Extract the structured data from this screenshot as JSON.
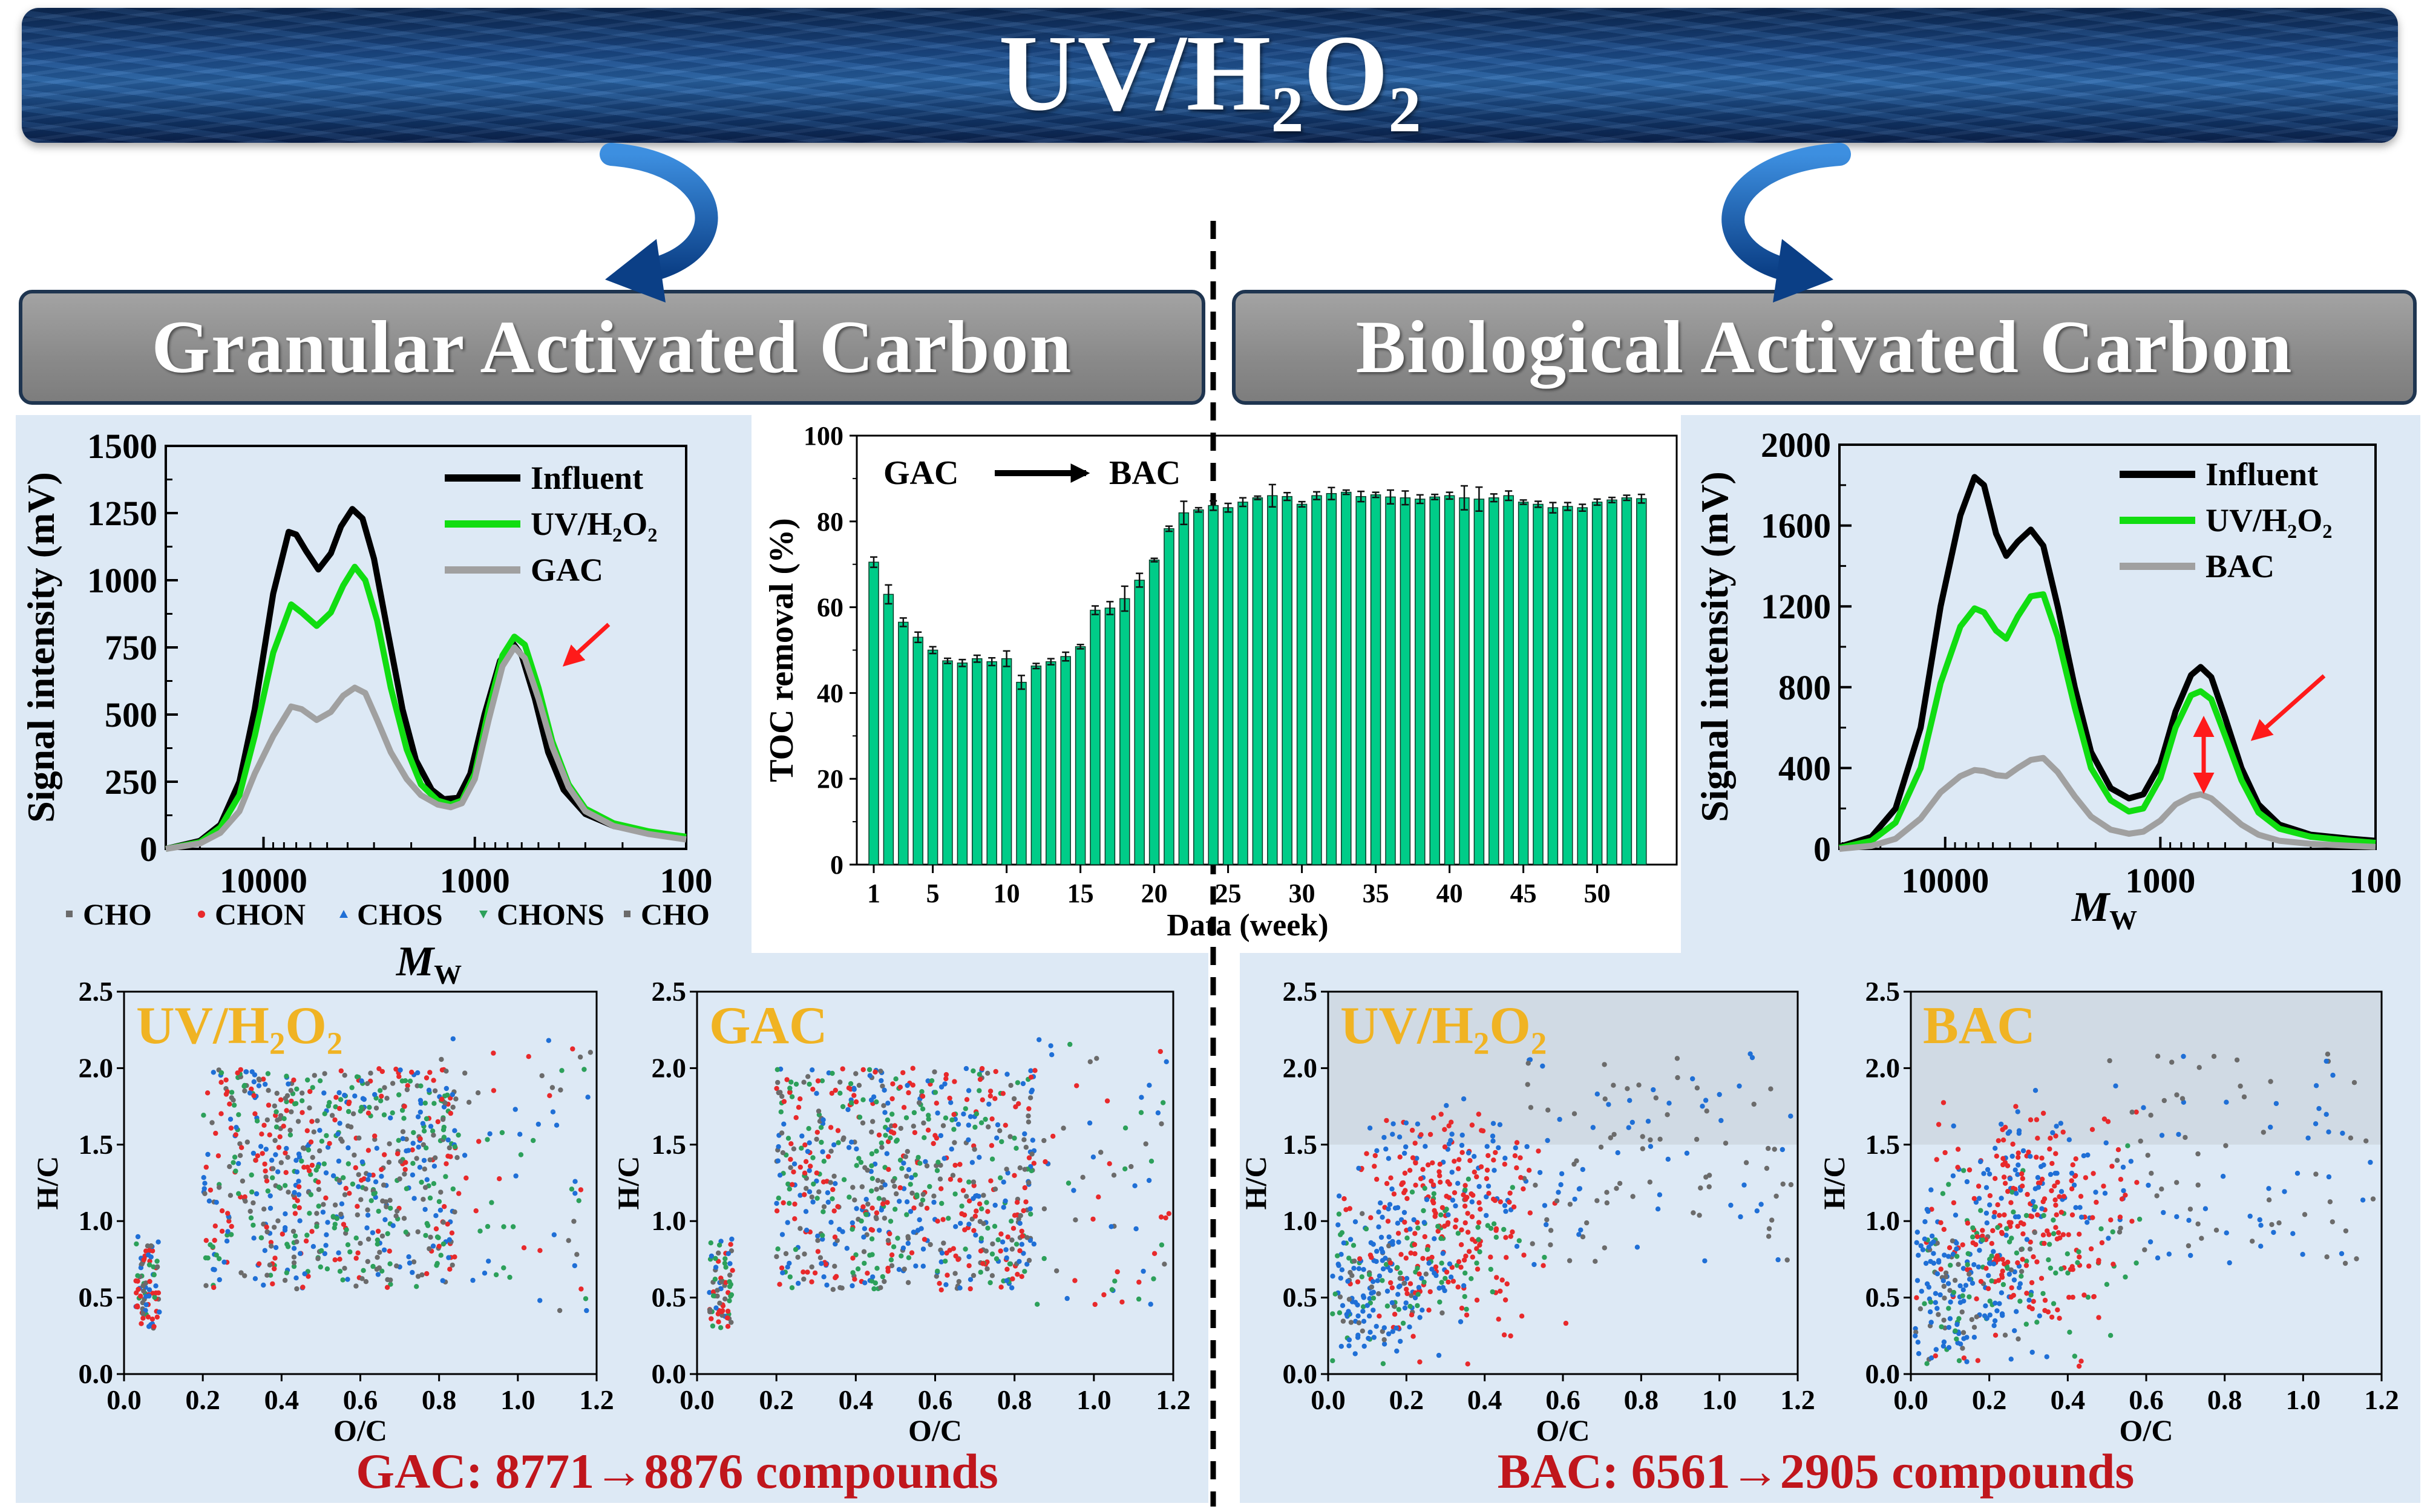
{
  "banner": {
    "title": "UV/H₂O₂"
  },
  "headers": {
    "left": "Granular Activated Carbon",
    "right": "Biological Activated Carbon"
  },
  "colors": {
    "cho": "#6b6b6b",
    "chon": "#e8292b",
    "chos": "#1f6fd6",
    "chons": "#2ca05a",
    "influent": "#000000",
    "uv": "#11dd11",
    "gac": "#a0a0a0",
    "bar": "#00cc88",
    "title_accent": "#f0b323",
    "result_text": "#c0161c"
  },
  "results": {
    "gac": "GAC: 8771→8876 compounds",
    "bac": "BAC: 6561→2905 compounds"
  },
  "scatter_legend": [
    {
      "label": "CHO",
      "marker": "square",
      "color": "#6b6b6b"
    },
    {
      "label": "CHON",
      "marker": "circle",
      "color": "#e8292b"
    },
    {
      "label": "CHOS",
      "marker": "triangle-up",
      "color": "#1f6fd6"
    },
    {
      "label": "CHONS",
      "marker": "triangle-down",
      "color": "#2ca05a"
    },
    {
      "label": "CHO",
      "marker": "square",
      "color": "#6b6b6b"
    }
  ],
  "chart_data": [
    {
      "id": "sec-gac",
      "type": "line",
      "xlabel": "M_W",
      "ylabel": "Signal intensity (mV)",
      "xscale": "log",
      "xlim": [
        29000,
        100
      ],
      "ylim": [
        0,
        1500
      ],
      "xticks": [
        10000,
        1000,
        100
      ],
      "yticks": [
        0,
        250,
        500,
        750,
        1000,
        1250,
        1500
      ],
      "legend_placement": "top-right",
      "series": [
        {
          "name": "Influent",
          "color": "#000000",
          "points": [
            [
              29000,
              0
            ],
            [
              20000,
              30
            ],
            [
              16000,
              90
            ],
            [
              13000,
              250
            ],
            [
              11000,
              520
            ],
            [
              9000,
              950
            ],
            [
              7600,
              1180
            ],
            [
              7000,
              1170
            ],
            [
              6300,
              1110
            ],
            [
              5500,
              1040
            ],
            [
              4800,
              1100
            ],
            [
              4300,
              1200
            ],
            [
              3800,
              1265
            ],
            [
              3400,
              1230
            ],
            [
              3000,
              1080
            ],
            [
              2600,
              820
            ],
            [
              2200,
              520
            ],
            [
              1900,
              330
            ],
            [
              1600,
              220
            ],
            [
              1400,
              185
            ],
            [
              1200,
              190
            ],
            [
              1050,
              280
            ],
            [
              900,
              500
            ],
            [
              760,
              700
            ],
            [
              660,
              765
            ],
            [
              600,
              720
            ],
            [
              520,
              560
            ],
            [
              450,
              360
            ],
            [
              380,
              220
            ],
            [
              300,
              130
            ],
            [
              220,
              85
            ],
            [
              150,
              60
            ],
            [
              100,
              45
            ]
          ]
        },
        {
          "name": "UV/H₂O₂",
          "color": "#11dd11",
          "points": [
            [
              29000,
              0
            ],
            [
              20000,
              25
            ],
            [
              16000,
              80
            ],
            [
              13000,
              200
            ],
            [
              11000,
              420
            ],
            [
              9000,
              730
            ],
            [
              7400,
              910
            ],
            [
              6600,
              880
            ],
            [
              5600,
              830
            ],
            [
              4800,
              880
            ],
            [
              4200,
              980
            ],
            [
              3700,
              1050
            ],
            [
              3300,
              1000
            ],
            [
              2900,
              850
            ],
            [
              2500,
              600
            ],
            [
              2100,
              370
            ],
            [
              1800,
              240
            ],
            [
              1500,
              180
            ],
            [
              1300,
              165
            ],
            [
              1150,
              180
            ],
            [
              1000,
              280
            ],
            [
              860,
              520
            ],
            [
              740,
              720
            ],
            [
              650,
              790
            ],
            [
              580,
              760
            ],
            [
              500,
              600
            ],
            [
              430,
              400
            ],
            [
              360,
              240
            ],
            [
              300,
              150
            ],
            [
              220,
              95
            ],
            [
              150,
              65
            ],
            [
              100,
              45
            ]
          ]
        },
        {
          "name": "GAC",
          "color": "#a0a0a0",
          "points": [
            [
              29000,
              0
            ],
            [
              20000,
              20
            ],
            [
              16000,
              60
            ],
            [
              13000,
              140
            ],
            [
              11000,
              280
            ],
            [
              9000,
              420
            ],
            [
              7400,
              530
            ],
            [
              6600,
              520
            ],
            [
              5600,
              480
            ],
            [
              4800,
              510
            ],
            [
              4200,
              570
            ],
            [
              3700,
              600
            ],
            [
              3300,
              580
            ],
            [
              2900,
              480
            ],
            [
              2500,
              360
            ],
            [
              2100,
              260
            ],
            [
              1800,
              200
            ],
            [
              1500,
              165
            ],
            [
              1300,
              155
            ],
            [
              1150,
              170
            ],
            [
              1000,
              260
            ],
            [
              860,
              480
            ],
            [
              740,
              680
            ],
            [
              650,
              750
            ],
            [
              580,
              710
            ],
            [
              500,
              560
            ],
            [
              430,
              380
            ],
            [
              360,
              230
            ],
            [
              300,
              140
            ],
            [
              220,
              85
            ],
            [
              150,
              55
            ],
            [
              100,
              35
            ]
          ]
        }
      ]
    },
    {
      "id": "toc-bar",
      "type": "bar",
      "xlabel": "Data (week)",
      "ylabel": "TOC removal (%)",
      "ylim": [
        0,
        100
      ],
      "yticks": [
        0,
        20,
        40,
        60,
        80,
        100
      ],
      "xticks": [
        1,
        5,
        10,
        15,
        20,
        25,
        30,
        35,
        40,
        45,
        50
      ],
      "annotation": {
        "from": "GAC",
        "to": "BAC"
      },
      "categories": [
        1,
        2,
        3,
        4,
        5,
        6,
        7,
        8,
        9,
        10,
        11,
        12,
        13,
        14,
        15,
        16,
        17,
        18,
        19,
        20,
        21,
        22,
        23,
        24,
        25,
        26,
        27,
        28,
        29,
        30,
        31,
        32,
        33,
        34,
        35,
        36,
        37,
        38,
        39,
        40,
        41,
        42,
        43,
        44,
        45,
        46,
        47,
        48,
        49,
        50,
        51,
        52,
        53
      ],
      "values": [
        70.5,
        63,
        56.5,
        53,
        50,
        47.5,
        47,
        48,
        47.3,
        48,
        42.5,
        46.3,
        47.3,
        48.5,
        50.8,
        59.3,
        59.8,
        62,
        66.3,
        71,
        78.3,
        82,
        82.7,
        83.7,
        83.2,
        84.5,
        85.5,
        86,
        85.8,
        84,
        86,
        86.5,
        86.8,
        85.8,
        86.2,
        85.7,
        85.5,
        85.2,
        85.7,
        86,
        85.5,
        85.2,
        85.5,
        86,
        84.5,
        84,
        83.2,
        83.5,
        83.2,
        84.5,
        85,
        85.5,
        85.3
      ],
      "errors": [
        1.2,
        2.2,
        1,
        1.2,
        0.8,
        0.6,
        0.8,
        0.8,
        0.9,
        1.8,
        1.6,
        0.6,
        0.7,
        1,
        0.5,
        1,
        1.5,
        2.9,
        1.6,
        0.4,
        0.6,
        2.7,
        0.5,
        1.1,
        1,
        1,
        0.4,
        2.6,
        0.9,
        0.6,
        0.9,
        1.4,
        0.5,
        1.2,
        0.6,
        1.6,
        1.6,
        1,
        0.6,
        0.8,
        2.8,
        2.8,
        0.9,
        1.1,
        0.5,
        0.7,
        1.2,
        0.9,
        0.8,
        0.7,
        0.6,
        0.6,
        1
      ]
    },
    {
      "id": "sec-bac",
      "type": "line",
      "xlabel": "M_W",
      "ylabel": "Signal intensity (mV)",
      "xscale": "log",
      "xlim": [
        31000,
        100
      ],
      "ylim": [
        0,
        2000
      ],
      "xticks": [
        10000,
        1000,
        100
      ],
      "yticks": [
        0,
        400,
        800,
        1200,
        1600,
        2000
      ],
      "legend_placement": "top-right",
      "series": [
        {
          "name": "Influent",
          "color": "#000000",
          "points": [
            [
              31000,
              10
            ],
            [
              22000,
              60
            ],
            [
              17000,
              200
            ],
            [
              13000,
              600
            ],
            [
              10500,
              1200
            ],
            [
              8500,
              1650
            ],
            [
              7300,
              1840
            ],
            [
              6600,
              1800
            ],
            [
              5800,
              1560
            ],
            [
              5200,
              1450
            ],
            [
              4600,
              1520
            ],
            [
              4000,
              1580
            ],
            [
              3500,
              1500
            ],
            [
              3000,
              1200
            ],
            [
              2500,
              800
            ],
            [
              2100,
              480
            ],
            [
              1700,
              300
            ],
            [
              1400,
              250
            ],
            [
              1200,
              270
            ],
            [
              1000,
              420
            ],
            [
              850,
              680
            ],
            [
              720,
              860
            ],
            [
              650,
              900
            ],
            [
              580,
              850
            ],
            [
              500,
              650
            ],
            [
              420,
              400
            ],
            [
              350,
              220
            ],
            [
              280,
              120
            ],
            [
              200,
              70
            ],
            [
              130,
              50
            ],
            [
              100,
              40
            ]
          ]
        },
        {
          "name": "UV/H₂O₂",
          "color": "#11dd11",
          "points": [
            [
              31000,
              5
            ],
            [
              22000,
              40
            ],
            [
              17000,
              130
            ],
            [
              13000,
              400
            ],
            [
              10500,
              820
            ],
            [
              8500,
              1100
            ],
            [
              7300,
              1190
            ],
            [
              6600,
              1170
            ],
            [
              5800,
              1080
            ],
            [
              5200,
              1040
            ],
            [
              4600,
              1150
            ],
            [
              4000,
              1250
            ],
            [
              3500,
              1260
            ],
            [
              3000,
              1050
            ],
            [
              2500,
              700
            ],
            [
              2100,
              400
            ],
            [
              1700,
              240
            ],
            [
              1400,
              185
            ],
            [
              1200,
              200
            ],
            [
              1000,
              350
            ],
            [
              850,
              600
            ],
            [
              720,
              760
            ],
            [
              650,
              780
            ],
            [
              580,
              740
            ],
            [
              500,
              560
            ],
            [
              420,
              340
            ],
            [
              350,
              180
            ],
            [
              280,
              100
            ],
            [
              200,
              60
            ],
            [
              130,
              40
            ],
            [
              100,
              30
            ]
          ]
        },
        {
          "name": "BAC",
          "color": "#a0a0a0",
          "points": [
            [
              31000,
              0
            ],
            [
              22000,
              15
            ],
            [
              17000,
              50
            ],
            [
              13000,
              150
            ],
            [
              10500,
              280
            ],
            [
              8500,
              360
            ],
            [
              7300,
              390
            ],
            [
              6600,
              385
            ],
            [
              5800,
              365
            ],
            [
              5200,
              360
            ],
            [
              4600,
              400
            ],
            [
              4000,
              440
            ],
            [
              3500,
              450
            ],
            [
              3000,
              380
            ],
            [
              2500,
              260
            ],
            [
              2100,
              160
            ],
            [
              1700,
              95
            ],
            [
              1400,
              75
            ],
            [
              1200,
              85
            ],
            [
              1000,
              140
            ],
            [
              850,
              220
            ],
            [
              720,
              260
            ],
            [
              650,
              270
            ],
            [
              580,
              250
            ],
            [
              500,
              190
            ],
            [
              420,
              120
            ],
            [
              350,
              70
            ],
            [
              280,
              40
            ],
            [
              200,
              25
            ],
            [
              130,
              15
            ],
            [
              100,
              10
            ]
          ]
        }
      ]
    },
    {
      "id": "vk-uv-gac",
      "type": "scatter",
      "title": "UV/H₂O₂",
      "xlabel": "O/C",
      "ylabel": "H/C",
      "xlim": [
        0,
        1.2
      ],
      "ylim": [
        0,
        2.5
      ],
      "xticks": [
        0.0,
        0.2,
        0.4,
        0.6,
        0.8,
        1.0,
        1.2
      ],
      "yticks": [
        0.0,
        0.5,
        1.0,
        1.5,
        2.0,
        2.5
      ]
    },
    {
      "id": "vk-gac",
      "type": "scatter",
      "title": "GAC",
      "xlabel": "O/C",
      "ylabel": "H/C",
      "xlim": [
        0,
        1.2
      ],
      "ylim": [
        0,
        2.5
      ],
      "xticks": [
        0.0,
        0.2,
        0.4,
        0.6,
        0.8,
        1.0,
        1.2
      ],
      "yticks": [
        0.0,
        0.5,
        1.0,
        1.5,
        2.0,
        2.5
      ]
    },
    {
      "id": "vk-uv-bac",
      "type": "scatter",
      "title": "UV/H₂O₂",
      "xlabel": "O/C",
      "ylabel": "H/C",
      "xlim": [
        0,
        1.2
      ],
      "ylim": [
        0,
        2.5
      ],
      "xticks": [
        0.0,
        0.2,
        0.4,
        0.6,
        0.8,
        1.0,
        1.2
      ],
      "yticks": [
        0.0,
        0.5,
        1.0,
        1.5,
        2.0,
        2.5
      ]
    },
    {
      "id": "vk-bac",
      "type": "scatter",
      "title": "BAC",
      "xlabel": "O/C",
      "ylabel": "H/C",
      "xlim": [
        0,
        1.2
      ],
      "ylim": [
        0,
        2.5
      ],
      "xticks": [
        0.0,
        0.2,
        0.4,
        0.6,
        0.8,
        1.0,
        1.2
      ],
      "yticks": [
        0.0,
        0.5,
        1.0,
        1.5,
        2.0,
        2.5
      ]
    }
  ]
}
